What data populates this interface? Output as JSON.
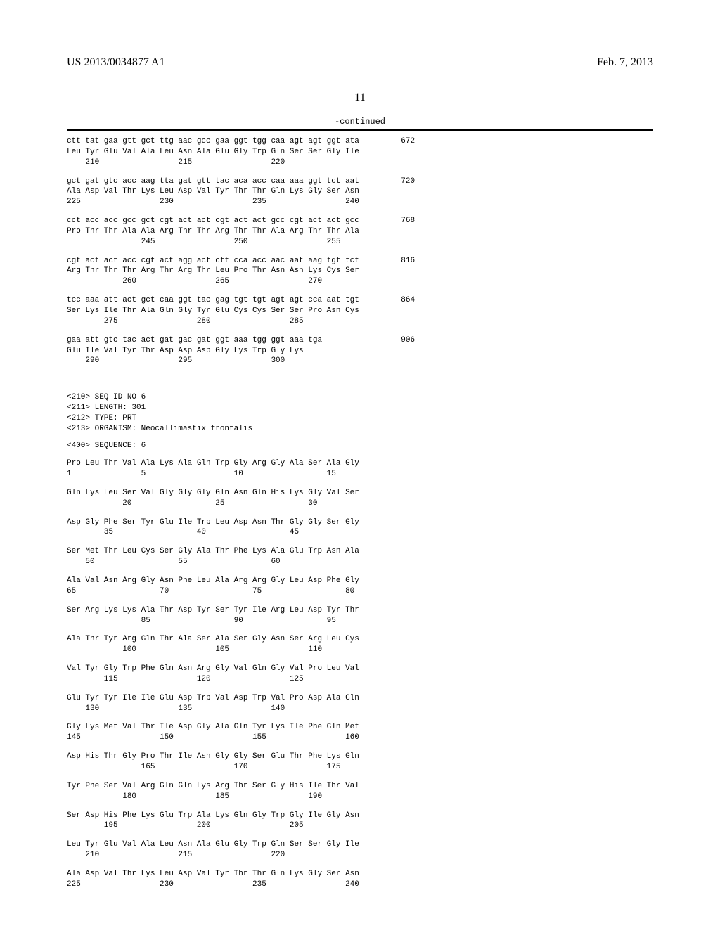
{
  "header": {
    "pub_id": "US 2013/0034877 A1",
    "pub_date": "Feb. 7, 2013"
  },
  "page_number": "11",
  "continued_label": "-continued",
  "seq5_blocks": [
    {
      "nuc": "ctt tat gaa gtt gct ttg aac gcc gaa ggt tgg caa agt agt ggt ata",
      "aa": "Leu Tyr Glu Val Ala Leu Asn Ala Glu Gly Trp Gln Ser Ser Gly Ile",
      "pos": "    210                 215                 220",
      "num": "672"
    },
    {
      "nuc": "gct gat gtc acc aag tta gat gtt tac aca acc caa aaa ggt tct aat",
      "aa": "Ala Asp Val Thr Lys Leu Asp Val Tyr Thr Thr Gln Lys Gly Ser Asn",
      "pos": "225                 230                 235                 240",
      "num": "720"
    },
    {
      "nuc": "cct acc acc gcc gct cgt act act cgt act act gcc cgt act act gcc",
      "aa": "Pro Thr Thr Ala Ala Arg Thr Thr Arg Thr Thr Ala Arg Thr Thr Ala",
      "pos": "                245                 250                 255",
      "num": "768"
    },
    {
      "nuc": "cgt act act acc cgt act agg act ctt cca acc aac aat aag tgt tct",
      "aa": "Arg Thr Thr Thr Arg Thr Arg Thr Leu Pro Thr Asn Asn Lys Cys Ser",
      "pos": "            260                 265                 270",
      "num": "816"
    },
    {
      "nuc": "tcc aaa att act gct caa ggt tac gag tgt tgt agt agt cca aat tgt",
      "aa": "Ser Lys Ile Thr Ala Gln Gly Tyr Glu Cys Cys Ser Ser Pro Asn Cys",
      "pos": "        275                 280                 285",
      "num": "864"
    },
    {
      "nuc": "gaa att gtc tac act gat gac gat ggt aaa tgg ggt aaa tga",
      "aa": "Glu Ile Val Tyr Thr Asp Asp Asp Gly Lys Trp Gly Lys",
      "pos": "    290                 295                 300",
      "num": "906"
    }
  ],
  "seq6_meta": [
    "<210> SEQ ID NO 6",
    "<211> LENGTH: 301",
    "<212> TYPE: PRT",
    "<213> ORGANISM: Neocallimastix frontalis"
  ],
  "seq6_header": "<400> SEQUENCE: 6",
  "seq6_blocks": [
    {
      "aa": "Pro Leu Thr Val Ala Lys Ala Gln Trp Gly Arg Gly Ala Ser Ala Gly",
      "pos": "1               5                   10                  15"
    },
    {
      "aa": "Gln Lys Leu Ser Val Gly Gly Gly Gln Asn Gln His Lys Gly Val Ser",
      "pos": "            20                  25                  30"
    },
    {
      "aa": "Asp Gly Phe Ser Tyr Glu Ile Trp Leu Asp Asn Thr Gly Gly Ser Gly",
      "pos": "        35                  40                  45"
    },
    {
      "aa": "Ser Met Thr Leu Cys Ser Gly Ala Thr Phe Lys Ala Glu Trp Asn Ala",
      "pos": "    50                  55                  60"
    },
    {
      "aa": "Ala Val Asn Arg Gly Asn Phe Leu Ala Arg Arg Gly Leu Asp Phe Gly",
      "pos": "65                  70                  75                  80"
    },
    {
      "aa": "Ser Arg Lys Lys Ala Thr Asp Tyr Ser Tyr Ile Arg Leu Asp Tyr Thr",
      "pos": "                85                  90                  95"
    },
    {
      "aa": "Ala Thr Tyr Arg Gln Thr Ala Ser Ala Ser Gly Asn Ser Arg Leu Cys",
      "pos": "            100                 105                 110"
    },
    {
      "aa": "Val Tyr Gly Trp Phe Gln Asn Arg Gly Val Gln Gly Val Pro Leu Val",
      "pos": "        115                 120                 125"
    },
    {
      "aa": "Glu Tyr Tyr Ile Ile Glu Asp Trp Val Asp Trp Val Pro Asp Ala Gln",
      "pos": "    130                 135                 140"
    },
    {
      "aa": "Gly Lys Met Val Thr Ile Asp Gly Ala Gln Tyr Lys Ile Phe Gln Met",
      "pos": "145                 150                 155                 160"
    },
    {
      "aa": "Asp His Thr Gly Pro Thr Ile Asn Gly Gly Ser Glu Thr Phe Lys Gln",
      "pos": "                165                 170                 175"
    },
    {
      "aa": "Tyr Phe Ser Val Arg Gln Gln Lys Arg Thr Ser Gly His Ile Thr Val",
      "pos": "            180                 185                 190"
    },
    {
      "aa": "Ser Asp His Phe Lys Glu Trp Ala Lys Gln Gly Trp Gly Ile Gly Asn",
      "pos": "        195                 200                 205"
    },
    {
      "aa": "Leu Tyr Glu Val Ala Leu Asn Ala Glu Gly Trp Gln Ser Ser Gly Ile",
      "pos": "    210                 215                 220"
    },
    {
      "aa": "Ala Asp Val Thr Lys Leu Asp Val Tyr Thr Thr Gln Lys Gly Ser Asn",
      "pos": "225                 230                 235                 240"
    }
  ]
}
